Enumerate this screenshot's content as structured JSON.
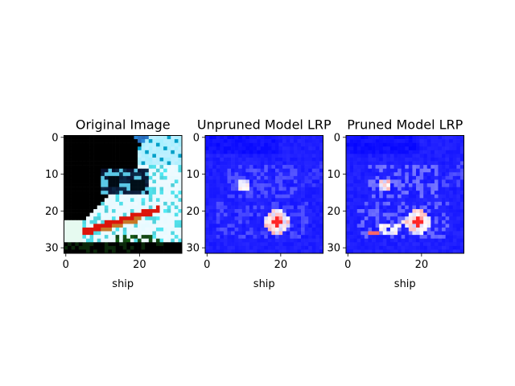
{
  "chart_data": [
    {
      "type": "heatmap",
      "title": "Original Image",
      "xlabel": "ship",
      "image_size": 32,
      "x_ticks": [
        0,
        20
      ],
      "y_ticks": [
        0,
        10,
        20,
        30
      ],
      "palette": "rgb-photo",
      "content": "32x32 photo of a ship: black background, cyan-white bow diagonal from lower-left to upper-right, red stripe along hull"
    },
    {
      "type": "heatmap",
      "title": "Unpruned Model LRP",
      "xlabel": "ship",
      "image_size": 32,
      "x_ticks": [
        0,
        20
      ],
      "y_ticks": [
        0,
        10,
        20,
        30
      ],
      "colormap": "bwr",
      "peak_cell": [
        19,
        23
      ]
    },
    {
      "type": "heatmap",
      "title": "Pruned Model LRP",
      "xlabel": "ship",
      "image_size": 32,
      "x_ticks": [
        0,
        20
      ],
      "y_ticks": [
        0,
        10,
        20,
        30
      ],
      "colormap": "bwr",
      "peak_cell": [
        19,
        23
      ]
    }
  ]
}
